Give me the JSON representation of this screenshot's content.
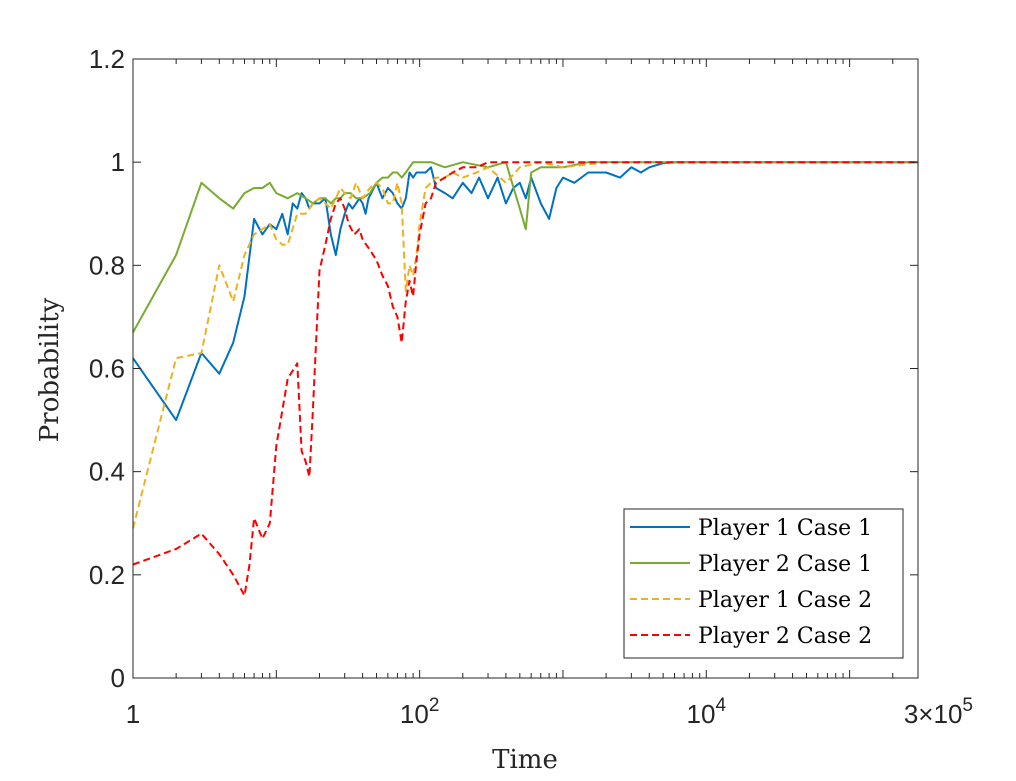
{
  "chart_data": {
    "type": "line",
    "title": "",
    "xlabel": "Time",
    "ylabel": "Probability",
    "xscale": "log",
    "xlim": [
      1,
      300000
    ],
    "ylim": [
      0,
      1.2
    ],
    "x_ticks": [
      {
        "value": 1,
        "base": "1",
        "exp": ""
      },
      {
        "value": 100,
        "base": "10",
        "exp": "2"
      },
      {
        "value": 10000,
        "base": "10",
        "exp": "4"
      },
      {
        "value": 300000,
        "base": "3×10",
        "exp": "5"
      }
    ],
    "y_ticks": [
      {
        "value": 0,
        "label": "0"
      },
      {
        "value": 0.2,
        "label": "0.2"
      },
      {
        "value": 0.4,
        "label": "0.4"
      },
      {
        "value": 0.6,
        "label": "0.6"
      },
      {
        "value": 0.8,
        "label": "0.8"
      },
      {
        "value": 1,
        "label": "1"
      },
      {
        "value": 1.2,
        "label": "1.2"
      }
    ],
    "grid": false,
    "legend_position": "bottom-right",
    "series": [
      {
        "name": "Player 1 Case 1",
        "color": "#0072BD",
        "dash": "solid",
        "x": [
          1,
          2,
          3,
          4,
          5,
          6,
          7,
          8,
          9,
          10,
          11,
          12,
          13,
          14,
          15,
          16,
          17,
          18,
          20,
          22,
          24,
          26,
          28,
          30,
          32,
          34,
          36,
          38,
          40,
          42,
          44,
          46,
          50,
          55,
          60,
          65,
          70,
          75,
          80,
          85,
          90,
          95,
          100,
          110,
          120,
          130,
          150,
          170,
          200,
          230,
          260,
          300,
          350,
          400,
          450,
          500,
          550,
          600,
          700,
          800,
          900,
          1000,
          1200,
          1500,
          2000,
          2500,
          3000,
          3500,
          4000,
          5000,
          6000,
          8000,
          10000,
          300000
        ],
        "y": [
          0.62,
          0.5,
          0.63,
          0.59,
          0.65,
          0.74,
          0.89,
          0.86,
          0.88,
          0.87,
          0.9,
          0.86,
          0.92,
          0.91,
          0.94,
          0.93,
          0.91,
          0.92,
          0.92,
          0.93,
          0.86,
          0.82,
          0.87,
          0.9,
          0.92,
          0.91,
          0.92,
          0.93,
          0.92,
          0.9,
          0.93,
          0.94,
          0.96,
          0.93,
          0.95,
          0.94,
          0.92,
          0.91,
          0.93,
          0.98,
          0.97,
          0.98,
          0.98,
          0.98,
          0.99,
          0.95,
          0.94,
          0.93,
          0.96,
          0.94,
          0.97,
          0.93,
          0.97,
          0.92,
          0.95,
          0.96,
          0.93,
          0.97,
          0.92,
          0.89,
          0.95,
          0.97,
          0.96,
          0.98,
          0.98,
          0.97,
          0.99,
          0.98,
          0.99,
          0.998,
          1.0,
          1.0,
          1.0,
          1.0
        ]
      },
      {
        "name": "Player 2 Case 1",
        "color": "#77AC30",
        "dash": "solid",
        "x": [
          1,
          2,
          3,
          4,
          5,
          6,
          7,
          8,
          9,
          10,
          12,
          14,
          16,
          18,
          20,
          22,
          24,
          26,
          28,
          30,
          33,
          36,
          40,
          45,
          50,
          55,
          60,
          65,
          70,
          75,
          80,
          85,
          90,
          100,
          120,
          150,
          200,
          300,
          400,
          500,
          550,
          600,
          700,
          800,
          1000,
          1500,
          2000,
          3000,
          5000,
          10000,
          300000
        ],
        "y": [
          0.67,
          0.82,
          0.96,
          0.93,
          0.91,
          0.94,
          0.95,
          0.95,
          0.96,
          0.94,
          0.93,
          0.94,
          0.93,
          0.92,
          0.93,
          0.93,
          0.92,
          0.93,
          0.93,
          0.94,
          0.94,
          0.93,
          0.93,
          0.94,
          0.96,
          0.97,
          0.97,
          0.98,
          0.98,
          0.97,
          0.98,
          0.99,
          1.0,
          1.0,
          1.0,
          0.99,
          1.0,
          0.99,
          1.0,
          0.91,
          0.87,
          0.98,
          0.99,
          0.99,
          0.99,
          1.0,
          1.0,
          1.0,
          1.0,
          1.0,
          1.0
        ]
      },
      {
        "name": "Player 1 Case 2",
        "color": "#EDB120",
        "dash": "dashed",
        "x": [
          1,
          2,
          3,
          4,
          5,
          6,
          7,
          8,
          9,
          10,
          11,
          12,
          14,
          16,
          18,
          20,
          22,
          24,
          26,
          28,
          30,
          33,
          36,
          40,
          45,
          50,
          55,
          60,
          65,
          70,
          75,
          80,
          85,
          90,
          95,
          100,
          110,
          120,
          130,
          150,
          170,
          200,
          250,
          300,
          400,
          500,
          700,
          1000,
          2000,
          3000,
          5000,
          10000,
          300000
        ],
        "y": [
          0.29,
          0.62,
          0.63,
          0.8,
          0.73,
          0.82,
          0.86,
          0.87,
          0.88,
          0.85,
          0.84,
          0.84,
          0.9,
          0.9,
          0.92,
          0.93,
          0.92,
          0.91,
          0.93,
          0.95,
          0.94,
          0.93,
          0.96,
          0.93,
          0.95,
          0.96,
          0.95,
          0.92,
          0.92,
          0.96,
          0.92,
          0.75,
          0.8,
          0.78,
          0.82,
          0.88,
          0.95,
          0.96,
          0.97,
          0.97,
          0.98,
          0.97,
          0.98,
          0.99,
          0.96,
          0.99,
          1.0,
          0.99,
          1.0,
          1.0,
          1.0,
          1.0,
          1.0
        ]
      },
      {
        "name": "Player 2 Case 2",
        "color": "#FF0000",
        "dash": "dashed",
        "x": [
          1,
          2,
          3,
          4,
          5,
          6,
          6.5,
          7,
          8,
          9,
          10,
          12,
          14,
          15,
          16,
          17,
          18,
          19,
          20,
          22,
          24,
          26,
          28,
          30,
          32,
          35,
          38,
          40,
          45,
          50,
          55,
          60,
          65,
          70,
          75,
          80,
          85,
          90,
          95,
          100,
          110,
          120,
          130,
          150,
          170,
          200,
          250,
          300,
          500,
          1000,
          2000,
          5000,
          10000,
          300000
        ],
        "y": [
          0.22,
          0.25,
          0.28,
          0.24,
          0.2,
          0.16,
          0.22,
          0.31,
          0.27,
          0.3,
          0.45,
          0.58,
          0.61,
          0.44,
          0.42,
          0.39,
          0.52,
          0.66,
          0.79,
          0.84,
          0.89,
          0.92,
          0.93,
          0.91,
          0.88,
          0.86,
          0.87,
          0.85,
          0.83,
          0.81,
          0.78,
          0.76,
          0.72,
          0.7,
          0.65,
          0.73,
          0.77,
          0.74,
          0.81,
          0.86,
          0.92,
          0.93,
          0.96,
          0.97,
          0.98,
          0.99,
          0.99,
          1.0,
          1.0,
          1.0,
          1.0,
          1.0,
          1.0,
          1.0
        ]
      }
    ]
  }
}
